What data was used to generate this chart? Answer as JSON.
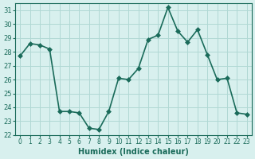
{
  "x": [
    0,
    1,
    2,
    3,
    4,
    5,
    6,
    7,
    8,
    9,
    10,
    11,
    12,
    13,
    14,
    15,
    16,
    17,
    18,
    19,
    20,
    21,
    22,
    23
  ],
  "y": [
    27.7,
    28.6,
    28.5,
    28.2,
    23.7,
    23.7,
    23.6,
    22.5,
    22.4,
    23.7,
    26.1,
    26.0,
    26.8,
    28.9,
    29.2,
    31.2,
    29.5,
    28.7,
    29.6,
    27.8,
    26.0,
    26.1,
    23.6,
    23.5
  ],
  "xlabel": "Humidex (Indice chaleur)",
  "ylim": [
    22,
    31.5
  ],
  "xlim": [
    -0.5,
    23.5
  ],
  "yticks": [
    22,
    23,
    24,
    25,
    26,
    27,
    28,
    29,
    30,
    31
  ],
  "xticks": [
    0,
    1,
    2,
    3,
    4,
    5,
    6,
    7,
    8,
    9,
    10,
    11,
    12,
    13,
    14,
    15,
    16,
    17,
    18,
    19,
    20,
    21,
    22,
    23
  ],
  "line_color": "#1a6b5a",
  "marker_color": "#1a6b5a",
  "bg_color": "#d8f0ee",
  "grid_color": "#b0d8d4",
  "title_color": "#1a6b5a",
  "tick_color": "#1a6b5a",
  "marker": "D",
  "marker_size": 3,
  "line_width": 1.2
}
